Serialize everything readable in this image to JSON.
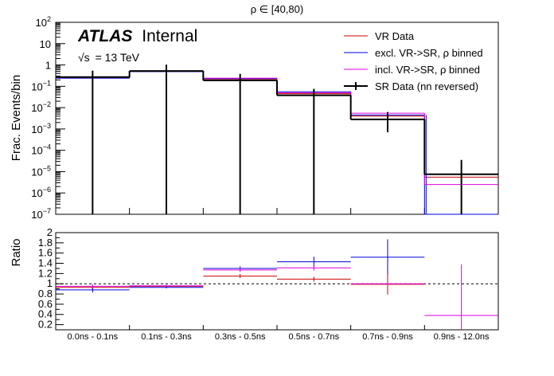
{
  "figure": {
    "title": "ρ ∈ [40,80)",
    "experiment": "ATLAS",
    "status": "Internal",
    "energy_prefix": "√s",
    "energy": "= 13 TeV"
  },
  "chart_data": [
    {
      "type": "step",
      "name": "main-panel",
      "ylabel": "Frac. Events/bin",
      "yscale": "log",
      "ylim": [
        1e-07,
        100
      ],
      "y_ticks": [
        {
          "v": 1e-07,
          "base": "10",
          "exp": "−7"
        },
        {
          "v": 1e-06,
          "base": "10",
          "exp": "−6"
        },
        {
          "v": 1e-05,
          "base": "10",
          "exp": "−5"
        },
        {
          "v": 0.0001,
          "base": "10",
          "exp": "−4"
        },
        {
          "v": 0.001,
          "base": "10",
          "exp": "−3"
        },
        {
          "v": 0.01,
          "base": "10",
          "exp": "−2"
        },
        {
          "v": 0.1,
          "base": "10",
          "exp": "−1"
        },
        {
          "v": 1,
          "base": "1",
          "exp": ""
        },
        {
          "v": 10,
          "base": "10",
          "exp": ""
        },
        {
          "v": 100,
          "base": "10",
          "exp": "2"
        }
      ],
      "categories": [
        "0.0ns - 0.1ns",
        "0.1ns - 0.3ns",
        "0.3ns - 0.5ns",
        "0.5ns - 0.7ns",
        "0.7ns - 0.9ns",
        "0.9ns - 12.0ns"
      ],
      "series": [
        {
          "name": "VR Data",
          "color": "#cc0000",
          "values": [
            0.25,
            0.5,
            0.22,
            0.045,
            0.004,
            5.5e-06
          ]
        },
        {
          "name": "excl. VR->SR, ρ binned",
          "color": "#0000dd",
          "values": [
            0.24,
            0.49,
            0.23,
            0.055,
            0.0045,
            0.0
          ]
        },
        {
          "name": "incl. VR->SR, ρ binned",
          "color": "#dd00dd",
          "values": [
            0.26,
            0.52,
            0.24,
            0.05,
            0.0055,
            2.5e-06
          ]
        },
        {
          "name": "SR Data (nn reversed)",
          "color": "#000000",
          "values": [
            0.27,
            0.52,
            0.19,
            0.038,
            0.0028,
            7.5e-06
          ],
          "err_low": [
            0.27,
            0.52,
            0.19,
            0.038,
            0.0021,
            7.5e-06
          ],
          "err_high": [
            0.27,
            0.52,
            0.19,
            0.038,
            0.0034,
            2.8e-05
          ]
        }
      ]
    },
    {
      "type": "ratio",
      "name": "ratio-panel",
      "ylabel": "Ratio",
      "ylim": [
        0.1,
        2.0
      ],
      "reference_line": 1.0,
      "y_ticks": [
        "0.2",
        "0.4",
        "0.6",
        "0.8",
        "1",
        "1.2",
        "1.4",
        "1.6",
        "1.8",
        "2"
      ],
      "categories": [
        "0.0ns - 0.1ns",
        "0.1ns - 0.3ns",
        "0.3ns - 0.5ns",
        "0.5ns - 0.7ns",
        "0.7ns - 0.9ns",
        "0.9ns - 12.0ns"
      ],
      "series": [
        {
          "name": "VR Data",
          "color": "#cc0000",
          "values": [
            0.93,
            0.95,
            1.15,
            1.09,
            0.99,
            null
          ],
          "errors": [
            0.04,
            0.02,
            0.04,
            0.05,
            0.2,
            null
          ]
        },
        {
          "name": "excl. VR->SR, ρ binned",
          "color": "#0000dd",
          "values": [
            0.88,
            0.93,
            1.3,
            1.43,
            1.52,
            null
          ],
          "errors": [
            0.05,
            0.02,
            0.04,
            0.1,
            0.35,
            null
          ]
        },
        {
          "name": "incl. VR->SR, ρ binned",
          "color": "#dd00dd",
          "values": [
            0.95,
            0.96,
            1.27,
            1.31,
            1.0,
            0.38
          ],
          "errors": [
            0.04,
            0.02,
            0.04,
            0.05,
            0.03,
            1.0
          ]
        }
      ]
    }
  ]
}
